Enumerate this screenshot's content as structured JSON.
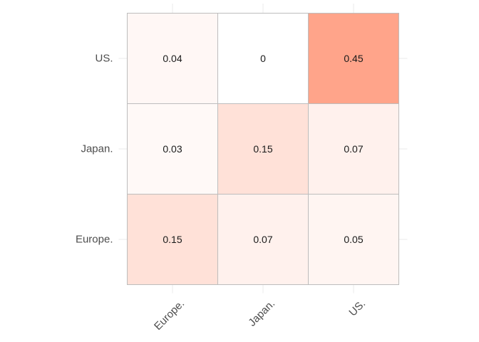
{
  "chart_data": {
    "type": "heatmap",
    "x_categories": [
      "Europe.",
      "Japan.",
      "US."
    ],
    "y_categories": [
      "Europe.",
      "Japan.",
      "US."
    ],
    "cells": [
      {
        "x": "Europe.",
        "y": "US.",
        "value": 0.04,
        "label": "0.04"
      },
      {
        "x": "Japan.",
        "y": "US.",
        "value": 0,
        "label": "0"
      },
      {
        "x": "US.",
        "y": "US.",
        "value": 0.45,
        "label": "0.45"
      },
      {
        "x": "Europe.",
        "y": "Japan.",
        "value": 0.03,
        "label": "0.03"
      },
      {
        "x": "Japan.",
        "y": "Japan.",
        "value": 0.15,
        "label": "0.15"
      },
      {
        "x": "US.",
        "y": "Japan.",
        "value": 0.07,
        "label": "0.07"
      },
      {
        "x": "Europe.",
        "y": "Europe.",
        "value": 0.15,
        "label": "0.15"
      },
      {
        "x": "Japan.",
        "y": "Europe.",
        "value": 0.07,
        "label": "0.07"
      },
      {
        "x": "US.",
        "y": "Europe.",
        "value": 0.05,
        "label": "0.05"
      }
    ],
    "value_range": [
      0,
      0.45
    ],
    "color_low": "#ffffff",
    "color_high": "#ffa48a",
    "x_tick_rotation": "45deg",
    "grid": true,
    "legend": "none"
  }
}
